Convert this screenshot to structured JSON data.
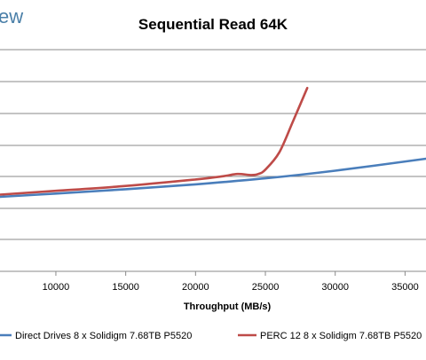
{
  "watermark_fragment": "ew",
  "chart_data": {
    "type": "line",
    "title": "Sequential Read 64K",
    "xlabel": "Throughput (MB/s)",
    "ylabel": "",
    "xlim": [
      6000,
      36500
    ],
    "x_ticks": [
      10000,
      15000,
      20000,
      25000,
      30000,
      35000
    ],
    "x_tick_labels": [
      "10000",
      "15000",
      "20000",
      "25000",
      "30000",
      "35000"
    ],
    "grid": "horizontal",
    "legend_position": "bottom",
    "series": [
      {
        "name": "Direct Drives 8 x Solidigm 7.68TB P5520",
        "color": "#4a7ebb",
        "points": [
          [
            6000,
            0
          ],
          [
            10000,
            0.06
          ],
          [
            15000,
            0.14
          ],
          [
            20000,
            0.23
          ],
          [
            25000,
            0.34
          ],
          [
            30000,
            0.48
          ],
          [
            36500,
            0.7
          ]
        ]
      },
      {
        "name": "PERC 12 8 x Solidigm 7.68TB P5520",
        "color": "#be4b48",
        "points": [
          [
            6000,
            0.04
          ],
          [
            10000,
            0.11
          ],
          [
            15000,
            0.2
          ],
          [
            20000,
            0.32
          ],
          [
            22000,
            0.38
          ],
          [
            23000,
            0.42
          ],
          [
            24000,
            0.4
          ],
          [
            24500,
            0.42
          ],
          [
            25000,
            0.5
          ],
          [
            26000,
            0.82
          ],
          [
            27000,
            1.4
          ],
          [
            28000,
            2.0
          ]
        ]
      }
    ]
  }
}
